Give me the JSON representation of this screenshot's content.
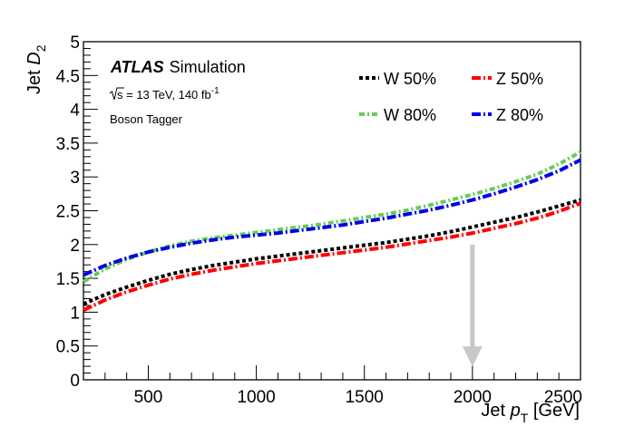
{
  "chart_data": {
    "type": "line",
    "xlabel_main": "Jet ",
    "xlabel_var": "p",
    "xlabel_sub": "T",
    "xlabel_unit": " [GeV]",
    "ylabel_main": "Jet ",
    "ylabel_var": "D",
    "ylabel_sub": "2",
    "xlim": [
      200,
      2500
    ],
    "ylim": [
      0,
      5
    ],
    "xticks": [
      500,
      1000,
      1500,
      2000,
      2500
    ],
    "xtick_labels": [
      "500",
      "1000",
      "1500",
      "2000",
      "2500"
    ],
    "yticks": [
      0,
      0.5,
      1,
      1.5,
      2,
      2.5,
      3,
      3.5,
      4,
      4.5,
      5
    ],
    "ytick_labels": [
      "0",
      "0.5",
      "1",
      "1.5",
      "2",
      "2.5",
      "3",
      "3.5",
      "4",
      "4.5",
      "5"
    ],
    "grid": false,
    "legend_position": "top-right",
    "annotations": {
      "experiment": "ATLAS",
      "status": "Simulation",
      "energy_sqrt": "s",
      "energy_text": " = 13 TeV, 140 fb",
      "energy_sup": "-1",
      "tagger": "Boson Tagger"
    },
    "arrow": {
      "x": 2000,
      "y_from": 2.0,
      "y_to": 0.2,
      "color": "#c8c8c8"
    },
    "x": [
      200,
      300,
      400,
      500,
      600,
      700,
      800,
      900,
      1000,
      1100,
      1200,
      1300,
      1400,
      1500,
      1600,
      1700,
      1800,
      1900,
      2000,
      2100,
      2200,
      2300,
      2400,
      2500
    ],
    "series": [
      {
        "name": "W 50%",
        "color": "#000000",
        "dash": "4,3",
        "values": [
          1.12,
          1.26,
          1.37,
          1.47,
          1.56,
          1.63,
          1.69,
          1.74,
          1.79,
          1.83,
          1.87,
          1.91,
          1.95,
          1.99,
          2.03,
          2.08,
          2.13,
          2.19,
          2.26,
          2.33,
          2.4,
          2.48,
          2.57,
          2.66
        ]
      },
      {
        "name": "Z 50%",
        "color": "#ff0000",
        "dash": "10,3,2,3",
        "values": [
          1.03,
          1.18,
          1.3,
          1.4,
          1.49,
          1.56,
          1.62,
          1.67,
          1.72,
          1.76,
          1.8,
          1.84,
          1.88,
          1.92,
          1.96,
          2.01,
          2.06,
          2.11,
          2.17,
          2.24,
          2.31,
          2.39,
          2.49,
          2.61
        ]
      },
      {
        "name": "W 80%",
        "color": "#66cc55",
        "dash": "6,3,2,3",
        "values": [
          1.45,
          1.64,
          1.78,
          1.89,
          1.98,
          2.05,
          2.1,
          2.14,
          2.18,
          2.22,
          2.26,
          2.3,
          2.35,
          2.4,
          2.45,
          2.51,
          2.58,
          2.66,
          2.74,
          2.83,
          2.93,
          3.04,
          3.19,
          3.37
        ]
      },
      {
        "name": "Z 80%",
        "color": "#0000e6",
        "dash": "10,3,2,3",
        "values": [
          1.55,
          1.69,
          1.8,
          1.89,
          1.96,
          2.02,
          2.07,
          2.11,
          2.14,
          2.17,
          2.21,
          2.25,
          2.29,
          2.34,
          2.39,
          2.45,
          2.51,
          2.58,
          2.66,
          2.75,
          2.85,
          2.96,
          3.09,
          3.25
        ]
      }
    ]
  }
}
